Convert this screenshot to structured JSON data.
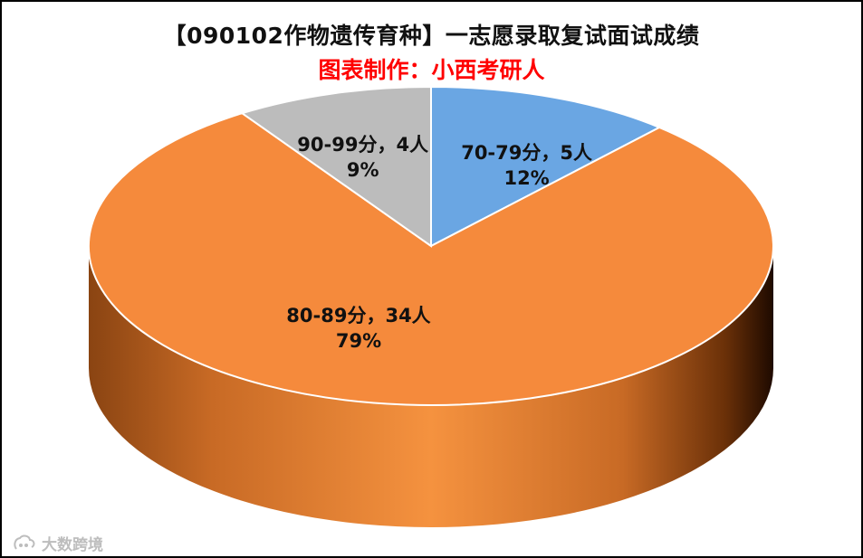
{
  "chart_data": {
    "type": "pie",
    "title": "【090102作物遗传育种】一志愿录取复试面试成绩",
    "subtitle": "图表制作：小西考研人",
    "slices": [
      {
        "label": "70-79分",
        "count": 5,
        "percent": 12,
        "count_text": "70-79分，5人",
        "percent_text": "12%",
        "color": "#6aa6e3"
      },
      {
        "label": "80-89分",
        "count": 34,
        "percent": 79,
        "count_text": "80-89分，34人",
        "percent_text": "79%",
        "color": "#f58a3c"
      },
      {
        "label": "90-99分",
        "count": 4,
        "percent": 9,
        "count_text": "90-99分，4人",
        "percent_text": "9%",
        "color": "#bcbcbc"
      }
    ]
  },
  "colors": {
    "subtitle": "#ff0000",
    "side_dark": "#8a4412",
    "side_light": "#f5923f"
  },
  "watermark": {
    "text": "大数跨境"
  }
}
